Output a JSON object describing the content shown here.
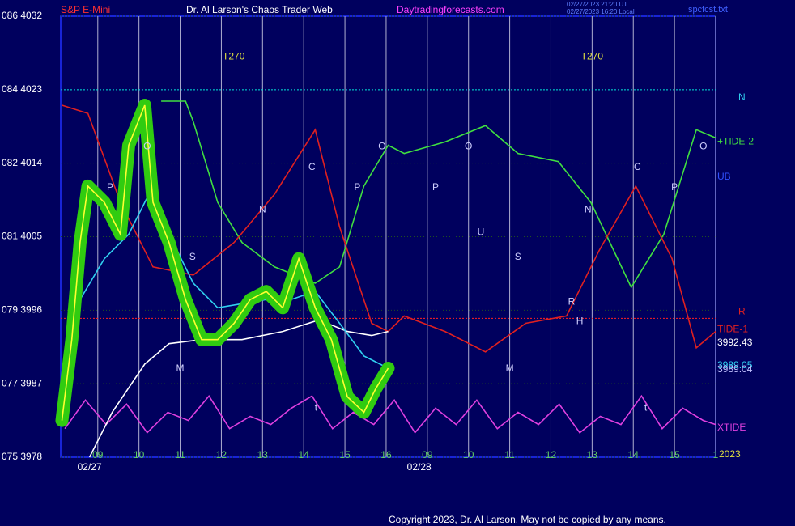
{
  "chart_data": {
    "type": "line",
    "title": "Dr. Al Larson's Chaos Trader Web",
    "symbol": "S&P E-Mini",
    "site": "Daytradingforecasts.com",
    "file": "spcfcst.txt",
    "timestamps": [
      "02/27/2023 21:20 UT",
      "02/27/2023 16:20 Local"
    ],
    "copyright": "Copyright 2023, Dr. Al Larson. May not be copied by any means.",
    "dates": [
      {
        "label": "02/27",
        "x": -0.2
      },
      {
        "label": "02/28",
        "x": 7.8
      }
    ],
    "year": "2023",
    "xlim": [
      -0.9,
      15
    ],
    "xticks": [
      {
        "value": 0,
        "label": "09"
      },
      {
        "value": 1,
        "label": "10"
      },
      {
        "value": 2,
        "label": "11"
      },
      {
        "value": 3,
        "label": "12"
      },
      {
        "value": 4,
        "label": "13"
      },
      {
        "value": 5,
        "label": "14"
      },
      {
        "value": 6,
        "label": "15"
      },
      {
        "value": 7,
        "label": "16"
      },
      {
        "value": 8,
        "label": "09"
      },
      {
        "value": 9,
        "label": "10"
      },
      {
        "value": 10,
        "label": "11"
      },
      {
        "value": 11,
        "label": "12"
      },
      {
        "value": 12,
        "label": "13"
      },
      {
        "value": 13,
        "label": "14"
      },
      {
        "value": 14,
        "label": "15"
      },
      {
        "value": 15,
        "label": "1"
      }
    ],
    "ylim": [
      3978,
      4032
    ],
    "yticks": [
      {
        "value": 3978,
        "label": "075 3978"
      },
      {
        "value": 3987,
        "label": "077 3987"
      },
      {
        "value": 3996,
        "label": "079 3996"
      },
      {
        "value": 4005,
        "label": "081 4005"
      },
      {
        "value": 4014,
        "label": "082 4014"
      },
      {
        "value": 4023,
        "label": "084 4023"
      },
      {
        "value": 4032,
        "label": "086 4032"
      }
    ],
    "grid": true,
    "hlines": [
      {
        "value": 4023,
        "color": "#00e0e0"
      },
      {
        "value": 3995,
        "color": "#ff2020"
      }
    ],
    "series": [
      {
        "name": "+TIDE-2",
        "color": "#40e040",
        "x": [
          1.54,
          2.13,
          2.32,
          2.91,
          3.5,
          4.29,
          5.28,
          5.87,
          6.46,
          7.05,
          7.44,
          8.43,
          9.41,
          10.2,
          11.18,
          11.97,
          12.95,
          13.74,
          14.53,
          15.0
        ],
        "values": [
          4021.6,
          4021.6,
          4019.1,
          4009.2,
          4004.3,
          4001.3,
          3999.3,
          4001.3,
          4011.2,
          4016.2,
          4015.2,
          4016.6,
          4018.6,
          4015.2,
          4014.2,
          4009.2,
          3998.8,
          4005.3,
          4018.1,
          4017.1
        ]
      },
      {
        "name": "TIDE-1",
        "color": "#e02020",
        "x": [
          -0.87,
          -0.24,
          0.55,
          1.34,
          2.32,
          3.31,
          4.29,
          5.28,
          5.87,
          6.65,
          7.05,
          7.44,
          8.43,
          9.41,
          10.39,
          11.38,
          12.17,
          13.06,
          13.94,
          14.53,
          15.0
        ],
        "values": [
          4021.1,
          4020.1,
          4009.2,
          4001.3,
          4000.3,
          4004.3,
          4010.2,
          4018.1,
          4006.2,
          3994.4,
          3993.4,
          3995.3,
          3993.4,
          3990.9,
          3994.4,
          3995.3,
          4003.3,
          4011.2,
          4002.3,
          3991.4,
          3993.4
        ]
      },
      {
        "name": "XTIDE",
        "color": "#e040e0",
        "x": [
          -0.8,
          -0.3,
          0.2,
          0.7,
          1.2,
          1.7,
          2.2,
          2.7,
          3.2,
          3.7,
          4.2,
          4.7,
          5.2,
          5.7,
          6.2,
          6.7,
          7.2,
          7.7,
          8.2,
          8.7,
          9.2,
          9.7,
          10.2,
          10.7,
          11.2,
          11.7,
          12.2,
          12.7,
          13.2,
          13.7,
          14.2,
          14.7,
          15.0
        ],
        "values": [
          3981.5,
          3985.0,
          3982.0,
          3984.5,
          3981.0,
          3983.5,
          3982.5,
          3985.5,
          3981.5,
          3983.0,
          3982.0,
          3984.0,
          3985.5,
          3981.5,
          3983.5,
          3982.0,
          3985.0,
          3981.0,
          3984.0,
          3982.0,
          3985.0,
          3981.5,
          3983.5,
          3982.0,
          3984.5,
          3981.0,
          3983.0,
          3982.0,
          3985.5,
          3981.5,
          3984.0,
          3982.5,
          3982.0
        ]
      },
      {
        "color": "#ffffff",
        "x": [
          -0.2,
          0.35,
          1.14,
          1.73,
          2.52,
          3.5,
          4.49,
          5.37,
          6.06,
          6.65,
          7.05
        ],
        "values": [
          3978.0,
          3983.5,
          3989.4,
          3991.9,
          3992.4,
          3992.4,
          3993.4,
          3994.8,
          3993.4,
          3992.9,
          3993.4
        ]
      },
      {
        "color": "#30d0f0",
        "x": [
          -0.87,
          -0.43,
          0.16,
          0.75,
          1.24,
          1.73,
          2.32,
          2.91,
          3.5,
          4.09,
          4.69,
          5.28,
          5.87,
          6.46,
          7.05
        ],
        "values": [
          3987.9,
          3997.3,
          4002.3,
          4005.3,
          4010.2,
          4005.3,
          3999.3,
          3996.3,
          3996.8,
          3997.3,
          3997.3,
          3998.3,
          3994.4,
          3990.4,
          3988.9
        ]
      },
      {
        "color": "#ffff30",
        "halo": "#30cc10",
        "x": [
          -0.87,
          -0.63,
          -0.43,
          -0.24,
          0.16,
          0.55,
          0.75,
          1.14,
          1.34,
          1.73,
          2.13,
          2.52,
          2.91,
          3.31,
          3.7,
          4.09,
          4.49,
          4.88,
          5.28,
          5.67,
          6.06,
          6.46,
          6.75,
          7.05
        ],
        "values": [
          3982.5,
          3992.4,
          4004.3,
          4011.2,
          4009.2,
          4005.3,
          4016.2,
          4021.1,
          4009.2,
          4004.3,
          3997.3,
          3992.4,
          3992.4,
          3994.4,
          3997.3,
          3998.3,
          3996.3,
          4002.3,
          3996.3,
          3992.4,
          3985.4,
          3983.5,
          3986.4,
          3988.9
        ]
      }
    ],
    "side_labels": [
      {
        "text": "N",
        "color": "#30d0f0",
        "y": 4022
      },
      {
        "text": "+TIDE-2",
        "color": "#40e040",
        "y": 4016.6
      },
      {
        "text": "UB",
        "color": "#3050ff",
        "y": 4012.3
      },
      {
        "text": "R",
        "color": "#e02020",
        "y": 3995.8
      },
      {
        "text": "TIDE-1",
        "color": "#e02020",
        "y": 3993.6
      },
      {
        "text": "3992.43",
        "color": "#ffffff",
        "y": 3992.0
      },
      {
        "text": "3989.05",
        "color": "#30d0f0",
        "y": 3989.2
      },
      {
        "text": "3989.04",
        "color": "#c0c0ff",
        "y": 3988.7
      },
      {
        "text": "XTIDE",
        "color": "#e040e0",
        "y": 3981.6
      }
    ],
    "annotations": [
      {
        "text": "T270",
        "x": 3.3,
        "y": 4027
      },
      {
        "text": "T270",
        "x": 12.0,
        "y": 4027
      },
      {
        "text": "O",
        "x": 1.2,
        "y": 4016
      },
      {
        "text": "O",
        "x": 6.9,
        "y": 4016
      },
      {
        "text": "O",
        "x": 9.0,
        "y": 4016
      },
      {
        "text": "O",
        "x": 14.7,
        "y": 4016
      },
      {
        "text": "P",
        "x": 0.3,
        "y": 4011
      },
      {
        "text": "P",
        "x": 6.3,
        "y": 4011
      },
      {
        "text": "P",
        "x": 8.2,
        "y": 4011
      },
      {
        "text": "P",
        "x": 14.0,
        "y": 4011
      },
      {
        "text": "C",
        "x": 5.2,
        "y": 4013.5
      },
      {
        "text": "C",
        "x": 13.1,
        "y": 4013.5
      },
      {
        "text": "N",
        "x": 4.0,
        "y": 4008.3
      },
      {
        "text": "N",
        "x": 11.9,
        "y": 4008.3
      },
      {
        "text": "U",
        "x": 9.3,
        "y": 4005.5
      },
      {
        "text": "S",
        "x": 2.3,
        "y": 4002.5
      },
      {
        "text": "S",
        "x": 10.2,
        "y": 4002.5
      },
      {
        "text": "R",
        "x": 11.5,
        "y": 3997
      },
      {
        "text": "H",
        "x": 11.7,
        "y": 3994.6
      },
      {
        "text": "M",
        "x": 2.0,
        "y": 3988.8
      },
      {
        "text": "M",
        "x": 10.0,
        "y": 3988.8
      },
      {
        "text": "t",
        "x": 5.3,
        "y": 3984
      },
      {
        "text": "t",
        "x": 13.3,
        "y": 3984
      }
    ]
  }
}
